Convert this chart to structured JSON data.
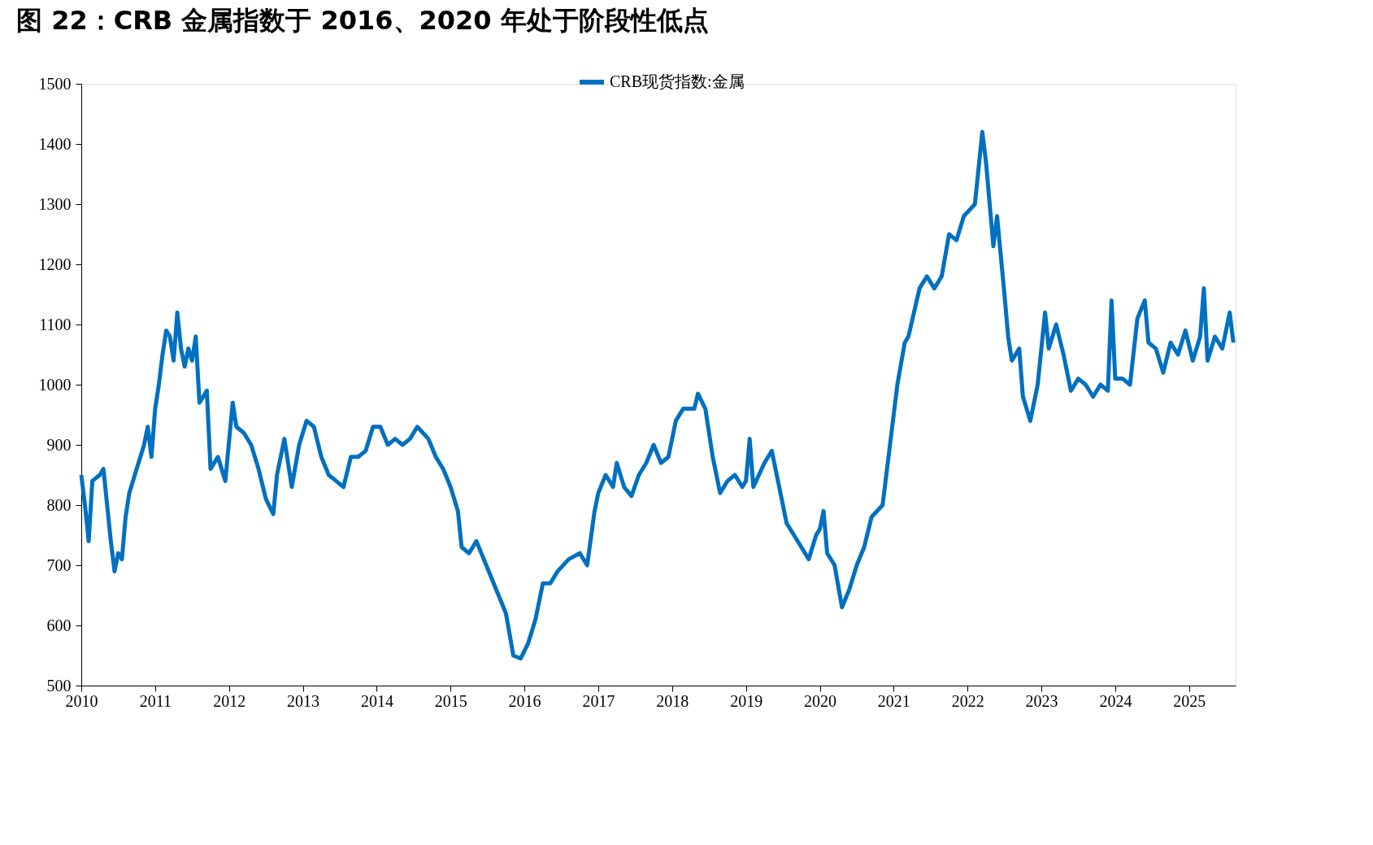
{
  "chart_data": {
    "type": "line",
    "title": "图 22：CRB 金属指数于 2016、2020 年处于阶段性低点",
    "x": [
      2010.0,
      2010.05,
      2010.1,
      2010.15,
      2010.25,
      2010.3,
      2010.35,
      2010.4,
      2010.45,
      2010.5,
      2010.55,
      2010.6,
      2010.65,
      2010.75,
      2010.85,
      2010.9,
      2010.95,
      2011.0,
      2011.05,
      2011.1,
      2011.15,
      2011.2,
      2011.25,
      2011.3,
      2011.35,
      2011.4,
      2011.45,
      2011.5,
      2011.55,
      2011.6,
      2011.7,
      2011.75,
      2011.85,
      2011.95,
      2012.05,
      2012.1,
      2012.2,
      2012.3,
      2012.4,
      2012.5,
      2012.6,
      2012.65,
      2012.75,
      2012.85,
      2012.95,
      2013.05,
      2013.15,
      2013.25,
      2013.35,
      2013.45,
      2013.55,
      2013.65,
      2013.75,
      2013.85,
      2013.95,
      2014.05,
      2014.15,
      2014.25,
      2014.35,
      2014.45,
      2014.55,
      2014.7,
      2014.8,
      2014.9,
      2015.0,
      2015.1,
      2015.15,
      2015.25,
      2015.35,
      2015.45,
      2015.55,
      2015.65,
      2015.75,
      2015.85,
      2015.95,
      2016.05,
      2016.15,
      2016.25,
      2016.35,
      2016.45,
      2016.6,
      2016.75,
      2016.85,
      2016.95,
      2017.0,
      2017.1,
      2017.2,
      2017.25,
      2017.35,
      2017.45,
      2017.55,
      2017.65,
      2017.75,
      2017.85,
      2017.95,
      2018.05,
      2018.15,
      2018.3,
      2018.35,
      2018.45,
      2018.55,
      2018.65,
      2018.75,
      2018.85,
      2018.95,
      2019.0,
      2019.05,
      2019.1,
      2019.25,
      2019.35,
      2019.45,
      2019.55,
      2019.65,
      2019.75,
      2019.85,
      2019.95,
      2020.0,
      2020.05,
      2020.1,
      2020.2,
      2020.3,
      2020.4,
      2020.5,
      2020.6,
      2020.7,
      2020.85,
      2020.95,
      2021.05,
      2021.15,
      2021.2,
      2021.35,
      2021.45,
      2021.55,
      2021.65,
      2021.75,
      2021.85,
      2021.95,
      2022.1,
      2022.2,
      2022.25,
      2022.35,
      2022.4,
      2022.5,
      2022.55,
      2022.6,
      2022.7,
      2022.75,
      2022.85,
      2022.95,
      2023.05,
      2023.1,
      2023.2,
      2023.3,
      2023.4,
      2023.5,
      2023.6,
      2023.7,
      2023.8,
      2023.9,
      2023.95,
      2024.0,
      2024.1,
      2024.2,
      2024.3,
      2024.4,
      2024.45,
      2024.55,
      2024.65,
      2024.75,
      2024.85,
      2024.95,
      2025.05,
      2025.15,
      2025.2,
      2025.25,
      2025.35,
      2025.45,
      2025.55,
      2025.6
    ],
    "series": [
      {
        "name": "CRB现货指数:金属",
        "color": "#0070c0",
        "values": [
          850,
          800,
          740,
          840,
          850,
          860,
          800,
          740,
          690,
          720,
          710,
          780,
          820,
          860,
          900,
          930,
          880,
          960,
          1000,
          1050,
          1090,
          1080,
          1040,
          1120,
          1060,
          1030,
          1060,
          1040,
          1080,
          970,
          990,
          860,
          880,
          840,
          970,
          930,
          920,
          900,
          860,
          810,
          785,
          850,
          910,
          830,
          900,
          940,
          930,
          880,
          850,
          840,
          830,
          880,
          880,
          890,
          930,
          930,
          900,
          910,
          900,
          910,
          930,
          910,
          880,
          860,
          830,
          790,
          730,
          720,
          740,
          710,
          680,
          650,
          620,
          550,
          545,
          570,
          610,
          670,
          670,
          690,
          710,
          720,
          700,
          790,
          820,
          850,
          830,
          870,
          830,
          815,
          850,
          870,
          900,
          870,
          880,
          940,
          960,
          960,
          985,
          960,
          880,
          820,
          840,
          850,
          830,
          840,
          910,
          830,
          870,
          890,
          830,
          770,
          750,
          730,
          710,
          750,
          760,
          790,
          720,
          700,
          630,
          660,
          700,
          730,
          780,
          800,
          900,
          1000,
          1070,
          1080,
          1160,
          1180,
          1160,
          1180,
          1250,
          1240,
          1280,
          1300,
          1420,
          1370,
          1230,
          1280,
          1150,
          1080,
          1040,
          1060,
          980,
          940,
          1000,
          1120,
          1060,
          1100,
          1050,
          990,
          1010,
          1000,
          980,
          1000,
          990,
          1140,
          1010,
          1010,
          1000,
          1110,
          1140,
          1070,
          1060,
          1020,
          1070,
          1050,
          1090,
          1040,
          1080,
          1160,
          1040,
          1080,
          1060,
          1120,
          1070
        ]
      }
    ],
    "xlim": [
      2010,
      2025.63
    ],
    "xticks": [
      2010,
      2011,
      2012,
      2013,
      2014,
      2015,
      2016,
      2017,
      2018,
      2019,
      2020,
      2021,
      2022,
      2023,
      2024,
      2025
    ],
    "ylim": [
      500,
      1500
    ],
    "yticks": [
      500,
      600,
      700,
      800,
      900,
      1000,
      1100,
      1200,
      1300,
      1400,
      1500
    ],
    "legend": "top",
    "grid": false,
    "line_style": "solid",
    "marker": "none"
  }
}
